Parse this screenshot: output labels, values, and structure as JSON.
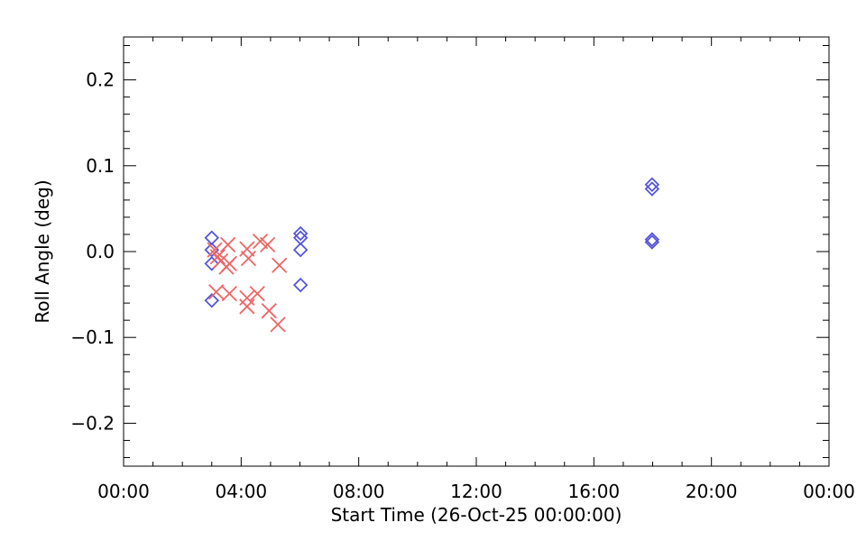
{
  "chart_data": {
    "type": "scatter",
    "xlabel": "Start Time (26-Oct-25 00:00:00)",
    "ylabel": "Roll Angle (deg)",
    "xlim": [
      0,
      24
    ],
    "ylim": [
      -0.25,
      0.25
    ],
    "x_unit": "hours",
    "x_ticks": [
      0,
      4,
      8,
      12,
      16,
      20,
      24
    ],
    "x_tick_labels": [
      "00:00",
      "04:00",
      "08:00",
      "12:00",
      "16:00",
      "20:00",
      "00:00"
    ],
    "y_ticks": [
      -0.2,
      -0.1,
      0.0,
      0.1,
      0.2
    ],
    "y_tick_labels": [
      "−0.2",
      "−0.1",
      "0.0",
      "0.1",
      "0.2"
    ],
    "grid": false,
    "series": [
      {
        "marker": "diamond",
        "color": "#5555dd",
        "points": [
          {
            "x": 3.0,
            "y": 0.016
          },
          {
            "x": 3.0,
            "y": 0.002
          },
          {
            "x": 3.0,
            "y": -0.014
          },
          {
            "x": 3.0,
            "y": -0.057
          },
          {
            "x": 6.02,
            "y": 0.021
          },
          {
            "x": 6.02,
            "y": 0.016
          },
          {
            "x": 6.02,
            "y": 0.002
          },
          {
            "x": 6.02,
            "y": -0.039
          },
          {
            "x": 17.98,
            "y": 0.078
          },
          {
            "x": 17.98,
            "y": 0.073
          },
          {
            "x": 17.98,
            "y": 0.014
          },
          {
            "x": 17.98,
            "y": 0.011
          }
        ]
      },
      {
        "marker": "x",
        "color": "#ee6666",
        "points": [
          {
            "x": 3.1,
            "y": 0.002
          },
          {
            "x": 3.2,
            "y": -0.006
          },
          {
            "x": 3.3,
            "y": -0.011
          },
          {
            "x": 3.5,
            "y": -0.018
          },
          {
            "x": 3.6,
            "y": -0.014
          },
          {
            "x": 3.55,
            "y": 0.008
          },
          {
            "x": 4.2,
            "y": 0.003
          },
          {
            "x": 4.25,
            "y": -0.008
          },
          {
            "x": 4.65,
            "y": 0.012
          },
          {
            "x": 4.9,
            "y": 0.008
          },
          {
            "x": 5.3,
            "y": -0.016
          },
          {
            "x": 3.15,
            "y": -0.047
          },
          {
            "x": 3.6,
            "y": -0.049
          },
          {
            "x": 4.2,
            "y": -0.054
          },
          {
            "x": 4.2,
            "y": -0.064
          },
          {
            "x": 4.55,
            "y": -0.049
          },
          {
            "x": 4.95,
            "y": -0.069
          },
          {
            "x": 5.25,
            "y": -0.085
          }
        ]
      }
    ]
  }
}
